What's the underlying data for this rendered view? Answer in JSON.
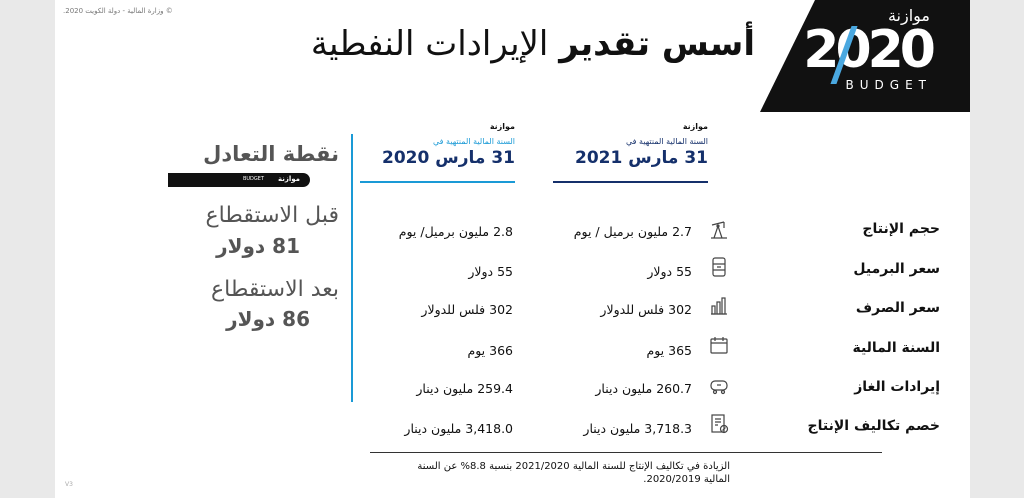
{
  "copyright": "© وزارة المالية - دولة الكويت 2020.",
  "version": "V3",
  "logo": {
    "arabic": "موازنة",
    "number": "2020",
    "sub": "BUDGET"
  },
  "title": {
    "bold": "أسس تقدير",
    "rest": "الإيرادات النفطية"
  },
  "columns": {
    "fy2021": {
      "label": "موازنة",
      "subtitle": "السنة المالية المنتهية في",
      "date": "31 مارس 2021"
    },
    "fy2020": {
      "label": "موازنة",
      "subtitle": "السنة المالية المنتهية في",
      "date": "31 مارس 2020"
    }
  },
  "rows": [
    {
      "label": "حجم الإنتاج",
      "icon": "oil-pump-icon",
      "v2021": "2.7 مليون برميل / يوم",
      "v2020": "2.8 مليون برميل/ يوم"
    },
    {
      "label": "سعر البرميل",
      "icon": "barrel-icon",
      "v2021": "55 دولار",
      "v2020": "55 دولار"
    },
    {
      "label": "سعر الصرف",
      "icon": "exchange-chart-icon",
      "v2021": "302 فلس للدولار",
      "v2020": "302 فلس للدولار"
    },
    {
      "label": "السنة المالية",
      "icon": "calendar-icon",
      "v2021": "365 يوم",
      "v2020": "366 يوم"
    },
    {
      "label": "إيرادات الغاز",
      "icon": "gas-tank-icon",
      "v2021": "260.7 مليون دينار",
      "v2020": "259.4 مليون دينار"
    },
    {
      "label": "خصم تكاليف الإنتاج",
      "icon": "document-cost-icon",
      "v2021": "3,718.3 مليون دينار",
      "v2020": "3,418.0 مليون دينار"
    }
  ],
  "footnote": "الزيادة في تكاليف الإنتاج للسنة المالية 2021/2020 بنسبة 8.8% عن السنة المالية 2020/2019.",
  "breakeven": {
    "title": "نقطة التعادل",
    "bar_ar": "موازنة",
    "bar_en": "BUDGET",
    "before_label": "قبل الاستقطاع",
    "before_value": "81 دولار",
    "after_label": "بعد الاستقطاع",
    "after_value": "86 دولار"
  }
}
